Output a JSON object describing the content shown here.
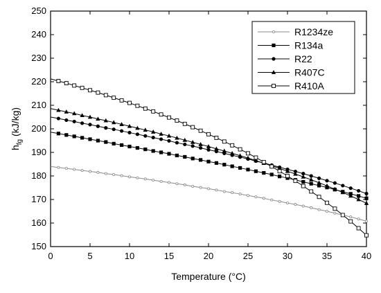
{
  "chart_data": {
    "type": "line",
    "title": "",
    "xlabel": "Temperature (°C)",
    "ylabel_main": "h",
    "ylabel_sub": "fg",
    "ylabel_tail": " (kJ/kg)",
    "xlim": [
      0,
      40
    ],
    "ylim": [
      150,
      250
    ],
    "xticks": [
      0,
      5,
      10,
      15,
      20,
      25,
      30,
      35,
      40
    ],
    "yticks": [
      150,
      160,
      170,
      180,
      190,
      200,
      210,
      220,
      230,
      240,
      250
    ],
    "grid": false,
    "legend_position": "top-right",
    "x": [
      0,
      1,
      2,
      3,
      4,
      5,
      6,
      7,
      8,
      9,
      10,
      11,
      12,
      13,
      14,
      15,
      16,
      17,
      18,
      19,
      20,
      21,
      22,
      23,
      24,
      25,
      26,
      27,
      28,
      29,
      30,
      31,
      32,
      33,
      34,
      35,
      36,
      37,
      38,
      39,
      40
    ],
    "series": [
      {
        "name": "R1234ze",
        "marker": "small-circle",
        "color": "#8a8a8a",
        "values": [
          184.0,
          183.6,
          183.2,
          182.8,
          182.3,
          181.9,
          181.5,
          181.0,
          180.6,
          180.1,
          179.6,
          179.2,
          178.7,
          178.2,
          177.7,
          177.2,
          176.7,
          176.2,
          175.6,
          175.1,
          174.6,
          174.0,
          173.4,
          172.9,
          172.3,
          171.7,
          171.1,
          170.5,
          169.8,
          169.2,
          168.5,
          167.9,
          167.2,
          166.5,
          165.7,
          165.0,
          164.2,
          163.4,
          162.6,
          161.7,
          160.8
        ]
      },
      {
        "name": "R134a",
        "marker": "filled-square",
        "color": "#000000",
        "values": [
          198.6,
          198.0,
          197.4,
          196.8,
          196.2,
          195.6,
          195.0,
          194.4,
          193.7,
          193.1,
          192.5,
          191.9,
          191.3,
          190.6,
          190.0,
          189.4,
          188.7,
          188.1,
          187.4,
          186.8,
          186.1,
          185.5,
          184.8,
          184.1,
          183.4,
          182.7,
          182.0,
          181.3,
          180.6,
          179.8,
          179.1,
          178.3,
          177.5,
          176.7,
          175.9,
          175.1,
          174.2,
          173.3,
          172.4,
          171.5,
          170.5
        ]
      },
      {
        "name": "R22",
        "marker": "filled-circle",
        "color": "#000000",
        "values": [
          205.0,
          204.4,
          203.7,
          203.1,
          202.4,
          201.8,
          201.1,
          200.4,
          199.8,
          199.1,
          198.4,
          197.7,
          197.0,
          196.3,
          195.6,
          194.9,
          194.1,
          193.4,
          192.7,
          191.9,
          191.1,
          190.4,
          189.6,
          188.8,
          188.0,
          187.2,
          186.3,
          185.5,
          184.6,
          183.7,
          182.8,
          181.9,
          181.0,
          180.0,
          179.0,
          178.0,
          177.0,
          175.9,
          174.8,
          173.7,
          172.5
        ]
      },
      {
        "name": "R407C",
        "marker": "filled-triangle",
        "color": "#000000",
        "values": [
          208.6,
          207.9,
          207.2,
          206.5,
          205.7,
          205.0,
          204.2,
          203.5,
          202.7,
          201.9,
          201.1,
          200.3,
          199.5,
          198.7,
          197.8,
          197.0,
          196.1,
          195.2,
          194.3,
          193.4,
          192.5,
          191.5,
          190.6,
          189.6,
          188.6,
          187.6,
          186.5,
          185.4,
          184.3,
          183.2,
          182.0,
          180.8,
          179.6,
          178.4,
          177.1,
          175.8,
          174.4,
          173.0,
          171.5,
          170.0,
          168.4
        ]
      },
      {
        "name": "R410A",
        "marker": "open-square",
        "color": "#000000",
        "values": [
          221.2,
          220.3,
          219.4,
          218.4,
          217.4,
          216.4,
          215.4,
          214.3,
          213.2,
          212.1,
          211.0,
          209.8,
          208.6,
          207.4,
          206.1,
          204.8,
          203.5,
          202.1,
          200.7,
          199.2,
          197.7,
          196.2,
          194.6,
          193.0,
          191.3,
          189.6,
          187.8,
          185.9,
          184.0,
          182.0,
          180.0,
          177.9,
          175.7,
          173.4,
          171.1,
          168.6,
          166.1,
          163.4,
          160.7,
          157.8,
          154.8
        ]
      }
    ]
  }
}
